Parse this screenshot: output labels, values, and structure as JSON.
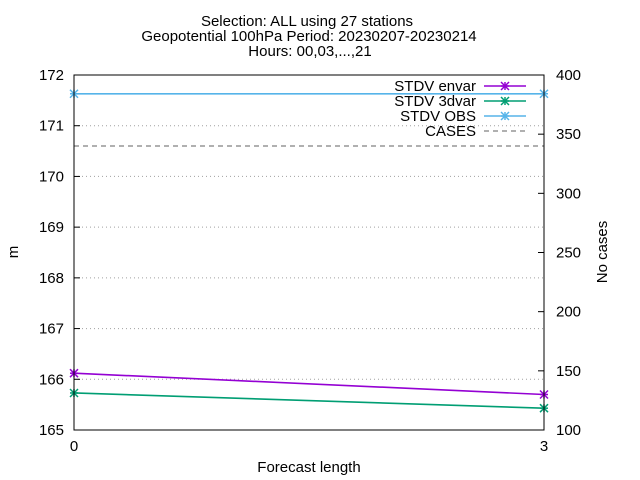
{
  "chart_data": {
    "type": "line",
    "title_lines": [
      "Selection: ALL using    27 stations",
      "Geopotential 100hPa   Period: 20230207-20230214",
      "Hours: 00,03,...,21"
    ],
    "xlabel": "Forecast length",
    "ylabel": "m",
    "y2label": "No cases",
    "x": [
      0,
      3
    ],
    "x_ticks": [
      0,
      3
    ],
    "xlim": [
      0,
      3
    ],
    "ylim": [
      165,
      172
    ],
    "y_ticks": [
      165,
      166,
      167,
      168,
      169,
      170,
      171,
      172
    ],
    "y2lim": [
      100,
      400
    ],
    "y2_ticks": [
      100,
      150,
      200,
      250,
      300,
      350,
      400
    ],
    "grid": "horizontal dotted",
    "legend_position": "top-right",
    "series": [
      {
        "name": "STDV envar",
        "axis": "y",
        "values": [
          166.12,
          165.7
        ],
        "color": "#9400d3",
        "style": "solid",
        "marker": "x"
      },
      {
        "name": "STDV 3dvar",
        "axis": "y",
        "values": [
          165.73,
          165.43
        ],
        "color": "#009e73",
        "style": "solid",
        "marker": "x"
      },
      {
        "name": "STDV OBS",
        "axis": "y",
        "values": [
          171.63,
          171.63
        ],
        "color": "#56b4e9",
        "style": "solid",
        "marker": "x"
      },
      {
        "name": "CASES",
        "axis": "y2",
        "values": [
          340,
          340
        ],
        "color": "#808080",
        "style": "dashed",
        "marker": "none"
      }
    ]
  }
}
